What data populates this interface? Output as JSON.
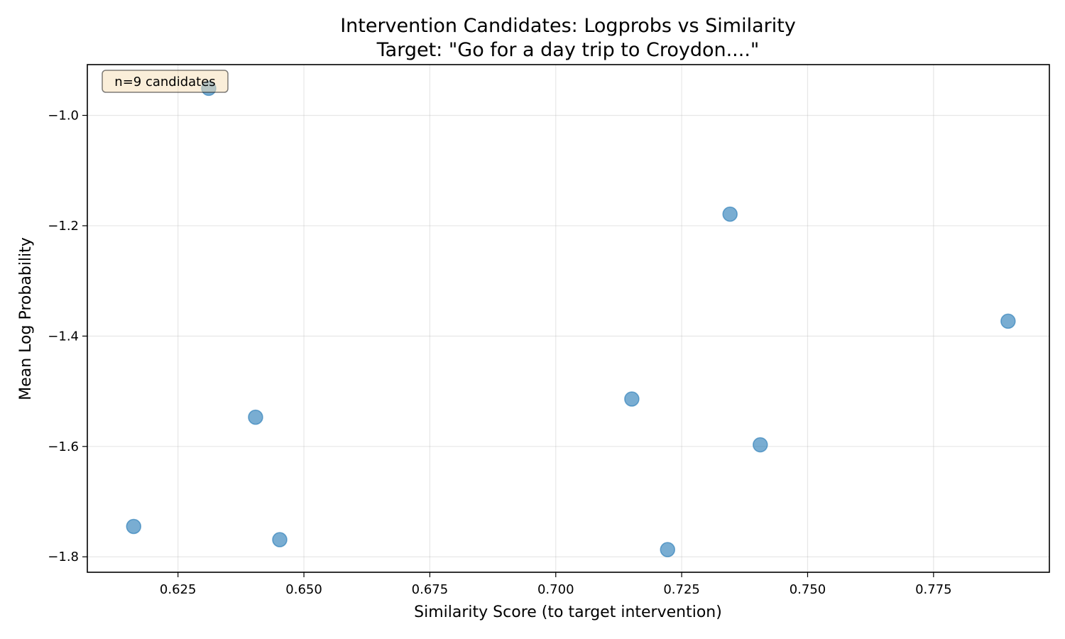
{
  "chart_data": {
    "type": "scatter",
    "title": "Intervention Candidates: Logprobs vs Similarity",
    "subtitle": "Target: \"Go for a day trip to Croydon....\"",
    "xlabel": "Similarity Score (to target intervention)",
    "ylabel": "Mean Log Probability",
    "xlim": [
      0.607,
      0.798
    ],
    "ylim": [
      -1.828,
      -0.908
    ],
    "xticks": [
      0.625,
      0.65,
      0.675,
      0.7,
      0.725,
      0.75,
      0.775
    ],
    "xtick_labels": [
      "0.625",
      "0.650",
      "0.675",
      "0.700",
      "0.725",
      "0.750",
      "0.775"
    ],
    "yticks": [
      -1.0,
      -1.2,
      -1.4,
      -1.6,
      -1.8
    ],
    "ytick_labels": [
      "−1.0",
      "−1.2",
      "−1.4",
      "−1.6",
      "−1.8"
    ],
    "grid": true,
    "annotation": "n=9 candidates",
    "annotation_placement": "top-left",
    "marker_color": "#1f77b4",
    "points": [
      {
        "x": 0.6162,
        "y": -1.745
      },
      {
        "x": 0.6311,
        "y": -0.951
      },
      {
        "x": 0.6404,
        "y": -1.547
      },
      {
        "x": 0.6452,
        "y": -1.769
      },
      {
        "x": 0.7151,
        "y": -1.514
      },
      {
        "x": 0.7222,
        "y": -1.787
      },
      {
        "x": 0.7346,
        "y": -1.179
      },
      {
        "x": 0.7406,
        "y": -1.597
      },
      {
        "x": 0.7898,
        "y": -1.373
      }
    ]
  }
}
